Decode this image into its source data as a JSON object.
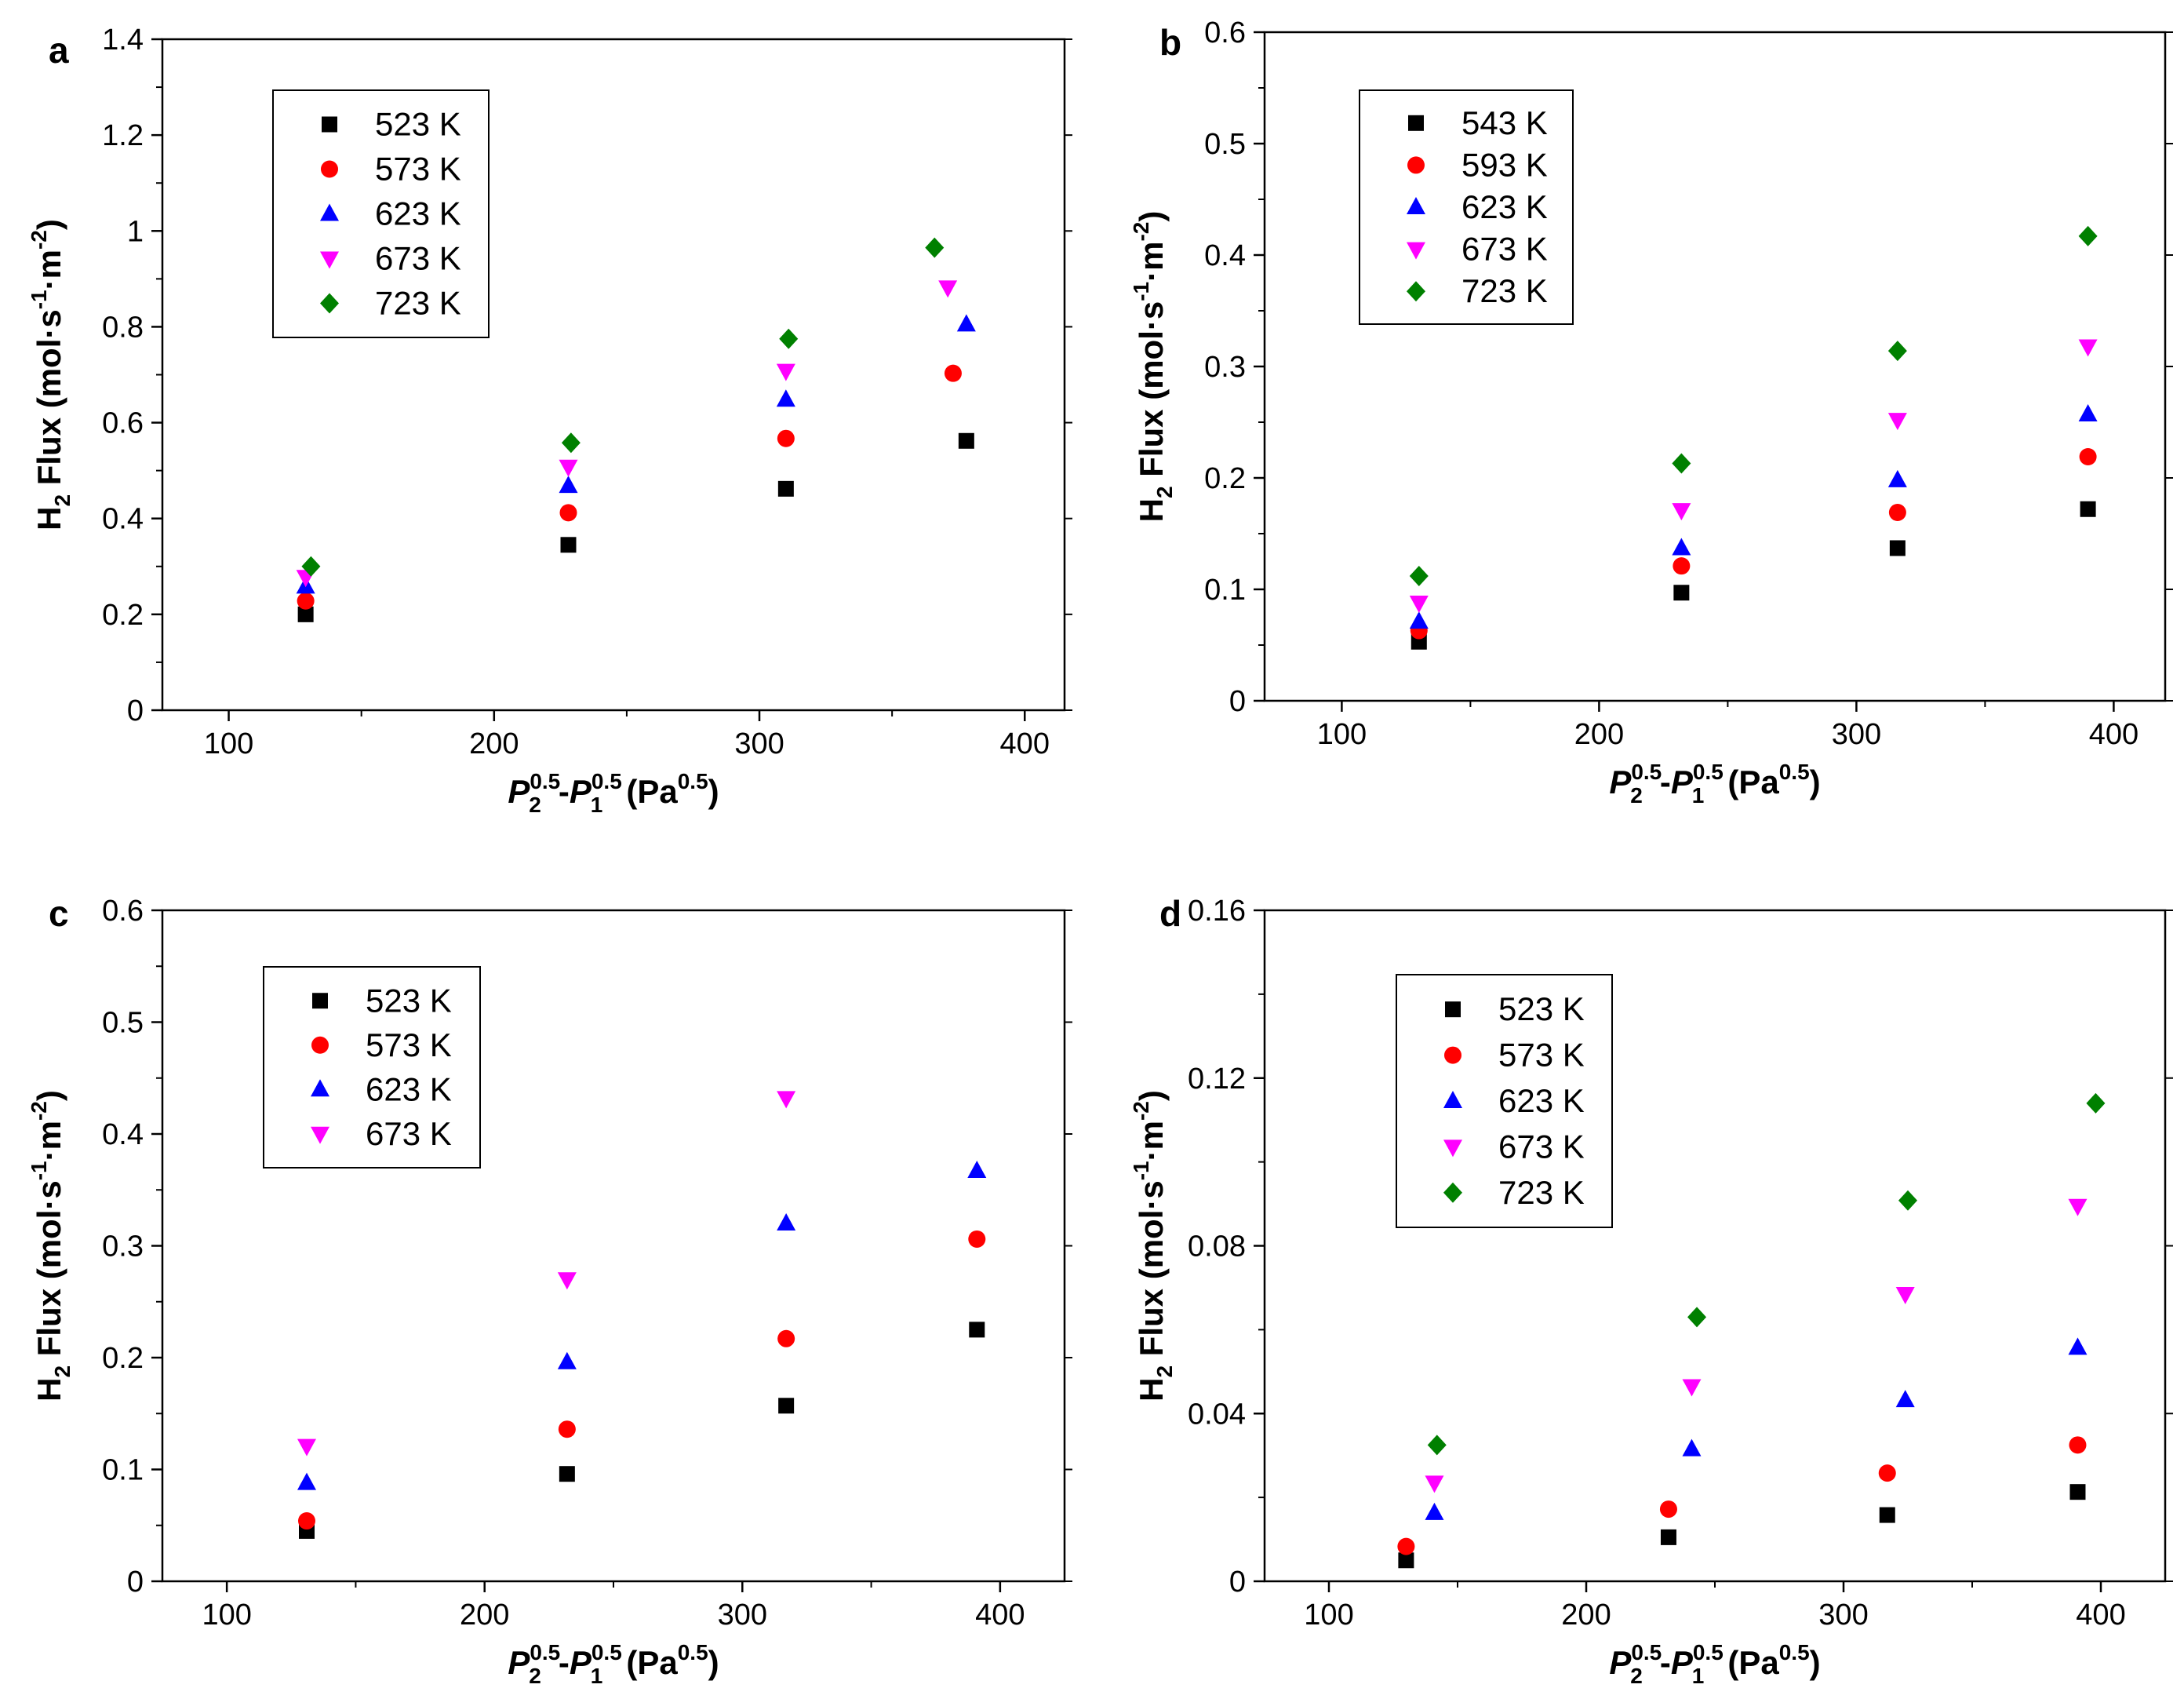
{
  "figure": {
    "background": "#ffffff"
  },
  "markers": {
    "square": {
      "color": "#000000"
    },
    "circle": {
      "color": "#ff0000"
    },
    "triangle-up": {
      "color": "#0000ff"
    },
    "triangle-down": {
      "color": "#ff00ff"
    },
    "diamond": {
      "color": "#008000"
    }
  },
  "chart_data": [
    {
      "panel": "a",
      "type": "scatter",
      "xlabel": {
        "p2": "P",
        "p2sub": "2",
        "p2sup": "0.5",
        "dash": "-",
        "p1": "P",
        "p1sub": "1",
        "p1sup": "0.5",
        "unit": "(Pa",
        "unitsup": "0.5",
        "close": ")"
      },
      "ylabel": {
        "h": "H",
        "hsub": "2",
        "flux": " Flux (mol·s",
        "s_exp": "-1",
        "m": "·m",
        "m_exp": "-2",
        "close": ")"
      },
      "xlim": [
        75,
        415
      ],
      "ylim": [
        0,
        1.4
      ],
      "xticks": [
        100,
        200,
        300,
        400
      ],
      "yticks": [
        0,
        0.2,
        0.4,
        0.6,
        0.8,
        1,
        1.2,
        1.4
      ],
      "ytick_labels": [
        "0",
        "0.2",
        "0.4",
        "0.6",
        "0.8",
        "1",
        "1.2",
        "1.4"
      ],
      "legend_position": "top-left",
      "series": [
        {
          "name": "523 K",
          "marker": "square",
          "points": [
            [
              129,
              0.2
            ],
            [
              228,
              0.345
            ],
            [
              310,
              0.462
            ],
            [
              378,
              0.562
            ]
          ]
        },
        {
          "name": "573 K",
          "marker": "circle",
          "points": [
            [
              129,
              0.228
            ],
            [
              228,
              0.412
            ],
            [
              310,
              0.567
            ],
            [
              373,
              0.703
            ]
          ]
        },
        {
          "name": "623 K",
          "marker": "triangle-up",
          "points": [
            [
              129,
              0.258
            ],
            [
              228,
              0.468
            ],
            [
              310,
              0.648
            ],
            [
              378,
              0.805
            ]
          ]
        },
        {
          "name": "673 K",
          "marker": "triangle-down",
          "points": [
            [
              129,
              0.278
            ],
            [
              228,
              0.508
            ],
            [
              310,
              0.708
            ],
            [
              371,
              0.882
            ]
          ]
        },
        {
          "name": "723 K",
          "marker": "diamond",
          "points": [
            [
              131,
              0.3
            ],
            [
              229,
              0.558
            ],
            [
              311,
              0.775
            ],
            [
              366,
              0.965
            ]
          ]
        }
      ]
    },
    {
      "panel": "b",
      "type": "scatter",
      "xlabel": {
        "p2": "P",
        "p2sub": "2",
        "p2sup": "0.5",
        "dash": "-",
        "p1": "P",
        "p1sub": "1",
        "p1sup": "0.5",
        "unit": "(Pa",
        "unitsup": "0.5",
        "close": ")"
      },
      "ylabel": {
        "h": "H",
        "hsub": "2",
        "flux": " Flux (mol·s",
        "s_exp": "-1",
        "m": "·m",
        "m_exp": "-2",
        "close": ")"
      },
      "xlim": [
        70,
        420
      ],
      "ylim": [
        0,
        0.6
      ],
      "xticks": [
        100,
        200,
        300,
        400
      ],
      "yticks": [
        0,
        0.1,
        0.2,
        0.3,
        0.4,
        0.5,
        0.6
      ],
      "ytick_labels": [
        "0",
        "0.1",
        "0.2",
        "0.3",
        "0.4",
        "0.5",
        "0.6"
      ],
      "legend_position": "top-left",
      "series": [
        {
          "name": "543 K",
          "marker": "square",
          "points": [
            [
              130,
              0.053
            ],
            [
              232,
              0.097
            ],
            [
              316,
              0.137
            ],
            [
              390,
              0.172
            ]
          ]
        },
        {
          "name": "593 K",
          "marker": "circle",
          "points": [
            [
              130,
              0.063
            ],
            [
              232,
              0.121
            ],
            [
              316,
              0.169
            ],
            [
              390,
              0.219
            ]
          ]
        },
        {
          "name": "623 K",
          "marker": "triangle-up",
          "points": [
            [
              130,
              0.071
            ],
            [
              232,
              0.137
            ],
            [
              316,
              0.198
            ],
            [
              390,
              0.257
            ]
          ]
        },
        {
          "name": "673 K",
          "marker": "triangle-down",
          "points": [
            [
              130,
              0.088
            ],
            [
              232,
              0.171
            ],
            [
              316,
              0.252
            ],
            [
              390,
              0.318
            ]
          ]
        },
        {
          "name": "723 K",
          "marker": "diamond",
          "points": [
            [
              130,
              0.112
            ],
            [
              232,
              0.213
            ],
            [
              316,
              0.314
            ],
            [
              390,
              0.417
            ]
          ]
        }
      ]
    },
    {
      "panel": "c",
      "type": "scatter",
      "xlabel": {
        "p2": "P",
        "p2sub": "2",
        "p2sup": "0.5",
        "dash": "-",
        "p1": "P",
        "p1sub": "1",
        "p1sup": "0.5",
        "unit": "(Pa",
        "unitsup": "0.5",
        "close": ")"
      },
      "ylabel": {
        "h": "H",
        "hsub": "2",
        "flux": " Flux (mol·s",
        "s_exp": "-1",
        "m": "·m",
        "m_exp": "-2",
        "close": ")"
      },
      "xlim": [
        75,
        425
      ],
      "ylim": [
        0,
        0.6
      ],
      "xticks": [
        100,
        200,
        300,
        400
      ],
      "yticks": [
        0,
        0.1,
        0.2,
        0.3,
        0.4,
        0.5,
        0.6
      ],
      "ytick_labels": [
        "0",
        "0.1",
        "0.2",
        "0.3",
        "0.4",
        "0.5",
        "0.6"
      ],
      "legend_position": "top-left",
      "series": [
        {
          "name": "523 K",
          "marker": "square",
          "points": [
            [
              131,
              0.045
            ],
            [
              232,
              0.096
            ],
            [
              317,
              0.157
            ],
            [
              391,
              0.225
            ]
          ]
        },
        {
          "name": "573 K",
          "marker": "circle",
          "points": [
            [
              131,
              0.054
            ],
            [
              232,
              0.136
            ],
            [
              317,
              0.217
            ],
            [
              391,
              0.306
            ]
          ]
        },
        {
          "name": "623 K",
          "marker": "triangle-up",
          "points": [
            [
              131,
              0.088
            ],
            [
              232,
              0.196
            ],
            [
              317,
              0.32
            ],
            [
              391,
              0.367
            ]
          ]
        },
        {
          "name": "673 K",
          "marker": "triangle-down",
          "points": [
            [
              131,
              0.121
            ],
            [
              232,
              0.27
            ],
            [
              317,
              0.432
            ]
          ]
        }
      ]
    },
    {
      "panel": "d",
      "type": "scatter",
      "xlabel": {
        "p2": "P",
        "p2sub": "2",
        "p2sup": "0.5",
        "dash": "-",
        "p1": "P",
        "p1sub": "1",
        "p1sup": "0.5",
        "unit": "(Pa",
        "unitsup": "0.5",
        "close": ")"
      },
      "ylabel": {
        "h": "H",
        "hsub": "2",
        "flux": " Flux (mol·s",
        "s_exp": "-1",
        "m": "·m",
        "m_exp": "-2",
        "close": ")"
      },
      "xlim": [
        75,
        425
      ],
      "ylim": [
        0,
        0.16
      ],
      "xticks": [
        100,
        200,
        300,
        400
      ],
      "yticks": [
        0,
        0.04,
        0.08,
        0.12,
        0.16
      ],
      "ytick_labels": [
        "0",
        "0.04",
        "0.08",
        "0.12",
        "0.16"
      ],
      "legend_position": "top-left",
      "series": [
        {
          "name": "523 K",
          "marker": "square",
          "points": [
            [
              130,
              0.005
            ],
            [
              232,
              0.0105
            ],
            [
              317,
              0.0158
            ],
            [
              391,
              0.0213
            ]
          ]
        },
        {
          "name": "573 K",
          "marker": "circle",
          "points": [
            [
              130,
              0.0083
            ],
            [
              232,
              0.0172
            ],
            [
              317,
              0.0258
            ],
            [
              391,
              0.0325
            ]
          ]
        },
        {
          "name": "623 K",
          "marker": "triangle-up",
          "points": [
            [
              141,
              0.0163
            ],
            [
              241,
              0.0315
            ],
            [
              324,
              0.0432
            ],
            [
              391,
              0.0557
            ]
          ]
        },
        {
          "name": "673 K",
          "marker": "triangle-down",
          "points": [
            [
              141,
              0.0235
            ],
            [
              241,
              0.0465
            ],
            [
              324,
              0.0685
            ],
            [
              391,
              0.0895
            ]
          ]
        },
        {
          "name": "723 K",
          "marker": "diamond",
          "points": [
            [
              142,
              0.0325
            ],
            [
              243,
              0.063
            ],
            [
              325,
              0.0908
            ],
            [
              398,
              0.114
            ]
          ]
        }
      ]
    }
  ]
}
